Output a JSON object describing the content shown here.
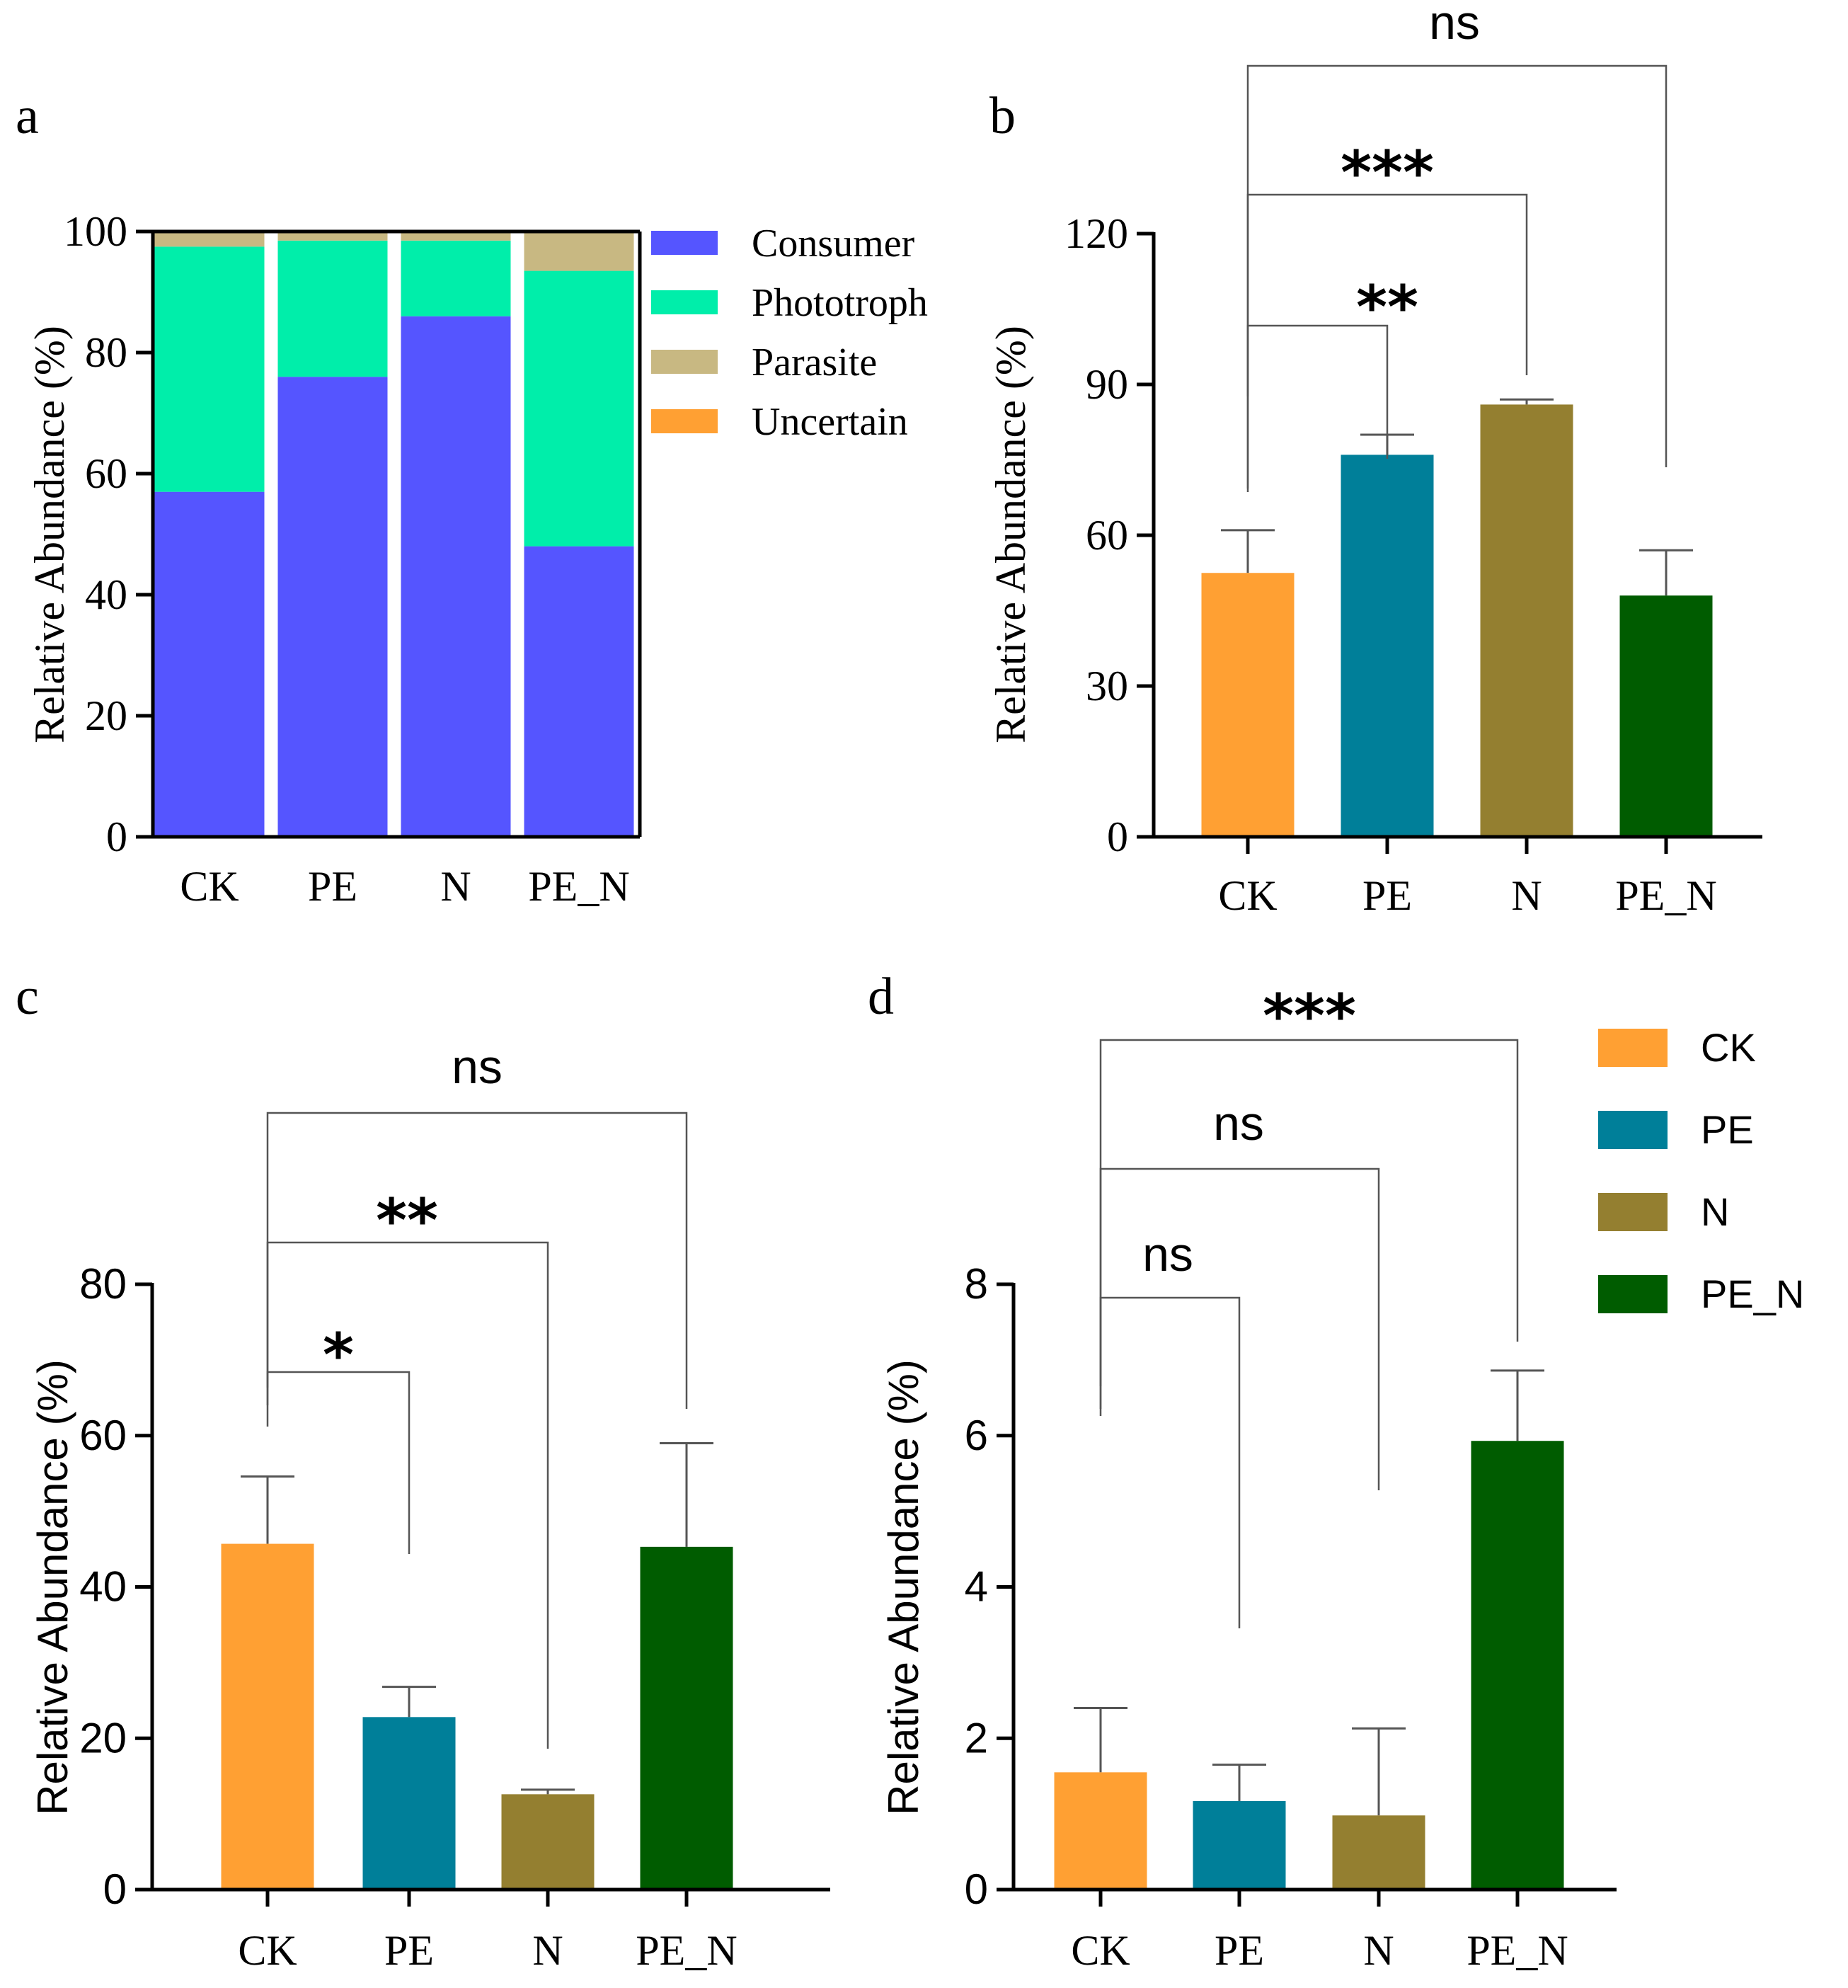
{
  "panel_labels": [
    "a",
    "b",
    "c",
    "d"
  ],
  "colors": {
    "Consumer": "#5555ff",
    "Phototroph": "#00eeaa",
    "Parasite": "#c8b882",
    "Uncertain": "#ffa033",
    "CK": "#ffa033",
    "PE": "#007f99",
    "N": "#947f30",
    "PE_N": "#005c00"
  },
  "chart_data": [
    {
      "panel": "a",
      "type": "bar",
      "stacked": true,
      "categories": [
        "CK",
        "PE",
        "N",
        "PE_N"
      ],
      "series": [
        {
          "name": "Consumer",
          "values": [
            57,
            76,
            86,
            48
          ]
        },
        {
          "name": "Phototroph",
          "values": [
            40.5,
            22.5,
            12.5,
            45.5
          ]
        },
        {
          "name": "Parasite",
          "values": [
            2.5,
            1.5,
            1.5,
            6.5
          ]
        },
        {
          "name": "Uncertain",
          "values": [
            0,
            0,
            0,
            0
          ]
        }
      ],
      "ylabel": "Relative Abundance (%)",
      "ylim": [
        0,
        100
      ],
      "yticks": [
        0,
        20,
        40,
        60,
        80,
        100
      ],
      "legend": [
        "Consumer",
        "Phototroph",
        "Parasite",
        "Uncertain"
      ],
      "legend_position": "right"
    },
    {
      "panel": "b",
      "type": "bar",
      "categories": [
        "CK",
        "PE",
        "N",
        "PE_N"
      ],
      "values": [
        52.5,
        76,
        86,
        48
      ],
      "errors": [
        8.5,
        4,
        1,
        9
      ],
      "ylabel": "Relative Abundance (%)",
      "ylim": [
        0,
        120
      ],
      "yticks": [
        0,
        30,
        60,
        90,
        120
      ],
      "comparisons": [
        {
          "from": "CK",
          "to": "PE",
          "label": "**"
        },
        {
          "from": "CK",
          "to": "N",
          "label": "***"
        },
        {
          "from": "CK",
          "to": "PE_N",
          "label": "ns"
        }
      ]
    },
    {
      "panel": "c",
      "type": "bar",
      "categories": [
        "CK",
        "PE",
        "N",
        "PE_N"
      ],
      "values": [
        45.7,
        22.8,
        12.6,
        45.3
      ],
      "errors": [
        8.9,
        4,
        0.6,
        13.7
      ],
      "ylabel": "Relative Abundance (%)",
      "ylim": [
        0,
        80
      ],
      "yticks": [
        0,
        20,
        40,
        60,
        80
      ],
      "comparisons": [
        {
          "from": "CK",
          "to": "PE",
          "label": "*"
        },
        {
          "from": "CK",
          "to": "N",
          "label": "**"
        },
        {
          "from": "CK",
          "to": "PE_N",
          "label": "ns"
        }
      ]
    },
    {
      "panel": "d",
      "type": "bar",
      "categories": [
        "CK",
        "PE",
        "N",
        "PE_N"
      ],
      "values": [
        1.55,
        1.17,
        0.98,
        5.93
      ],
      "errors": [
        0.85,
        0.48,
        1.15,
        0.93
      ],
      "ylabel": "Relative Abundance (%)",
      "ylim": [
        0,
        8
      ],
      "yticks": [
        0,
        2,
        4,
        6,
        8
      ],
      "comparisons": [
        {
          "from": "CK",
          "to": "PE",
          "label": "ns"
        },
        {
          "from": "CK",
          "to": "N",
          "label": "ns"
        },
        {
          "from": "CK",
          "to": "PE_N",
          "label": "***"
        }
      ],
      "legend": [
        "CK",
        "PE",
        "N",
        "PE_N"
      ],
      "legend_position": "top-right"
    }
  ]
}
